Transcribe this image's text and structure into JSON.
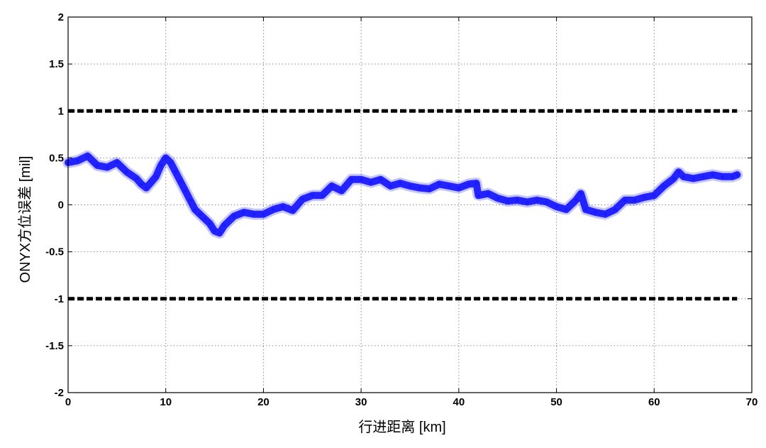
{
  "chart_data": {
    "type": "scatter",
    "title": "",
    "xlabel": "行进距离 [km]",
    "ylabel": "ONYX方位误差 [mil]",
    "xlim": [
      0,
      70
    ],
    "ylim": [
      -2,
      2
    ],
    "x_ticks": [
      "0",
      "10",
      "20",
      "30",
      "40",
      "50",
      "60",
      "70"
    ],
    "y_ticks": [
      "2",
      "1.5",
      "1",
      "0.5",
      "0",
      "-0.5",
      "-1",
      "-1.5",
      "-2"
    ],
    "grid": true,
    "legend": "none",
    "colors": {
      "data": "#1a1aff",
      "limit": "#000000",
      "grid": "#8a8a8a",
      "axis": "#000000"
    },
    "series": [
      {
        "style": "dots",
        "x": [
          0,
          1,
          2,
          3,
          4,
          5,
          6,
          7,
          7.5,
          8,
          9,
          9.5,
          10,
          10.5,
          11,
          11.5,
          12,
          12.5,
          13,
          13.5,
          14,
          14.5,
          15,
          15.5,
          16,
          17,
          18,
          19,
          20,
          21,
          22,
          23,
          24,
          25,
          26,
          27,
          28,
          29,
          30,
          31,
          32,
          33,
          34,
          35,
          36,
          37,
          38,
          39,
          40,
          41,
          41.8,
          42,
          43,
          44,
          45,
          46,
          47,
          48,
          49,
          50,
          51,
          52,
          52.5,
          53,
          54,
          55,
          56,
          57,
          58,
          59,
          60,
          61,
          62,
          62.5,
          63,
          64,
          65,
          66,
          67,
          68,
          68.5
        ],
        "y": [
          0.45,
          0.47,
          0.52,
          0.42,
          0.4,
          0.45,
          0.35,
          0.28,
          0.22,
          0.18,
          0.3,
          0.42,
          0.5,
          0.45,
          0.35,
          0.25,
          0.15,
          0.05,
          -0.05,
          -0.1,
          -0.15,
          -0.2,
          -0.28,
          -0.3,
          -0.22,
          -0.12,
          -0.08,
          -0.1,
          -0.1,
          -0.05,
          -0.02,
          -0.06,
          0.06,
          0.1,
          0.1,
          0.2,
          0.15,
          0.27,
          0.27,
          0.24,
          0.27,
          0.2,
          0.23,
          0.2,
          0.18,
          0.17,
          0.22,
          0.2,
          0.18,
          0.22,
          0.23,
          0.1,
          0.12,
          0.07,
          0.04,
          0.05,
          0.03,
          0.05,
          0.03,
          -0.02,
          -0.05,
          0.05,
          0.12,
          -0.05,
          -0.08,
          -0.1,
          -0.05,
          0.05,
          0.05,
          0.08,
          0.1,
          0.2,
          0.28,
          0.35,
          0.3,
          0.28,
          0.3,
          0.32,
          0.3,
          0.3,
          0.32
        ]
      },
      {
        "style": "dashed",
        "x": [
          0,
          68.5
        ],
        "y": [
          1,
          1
        ]
      },
      {
        "style": "dashed",
        "x": [
          0,
          68.5
        ],
        "y": [
          -1,
          -1
        ]
      }
    ]
  }
}
